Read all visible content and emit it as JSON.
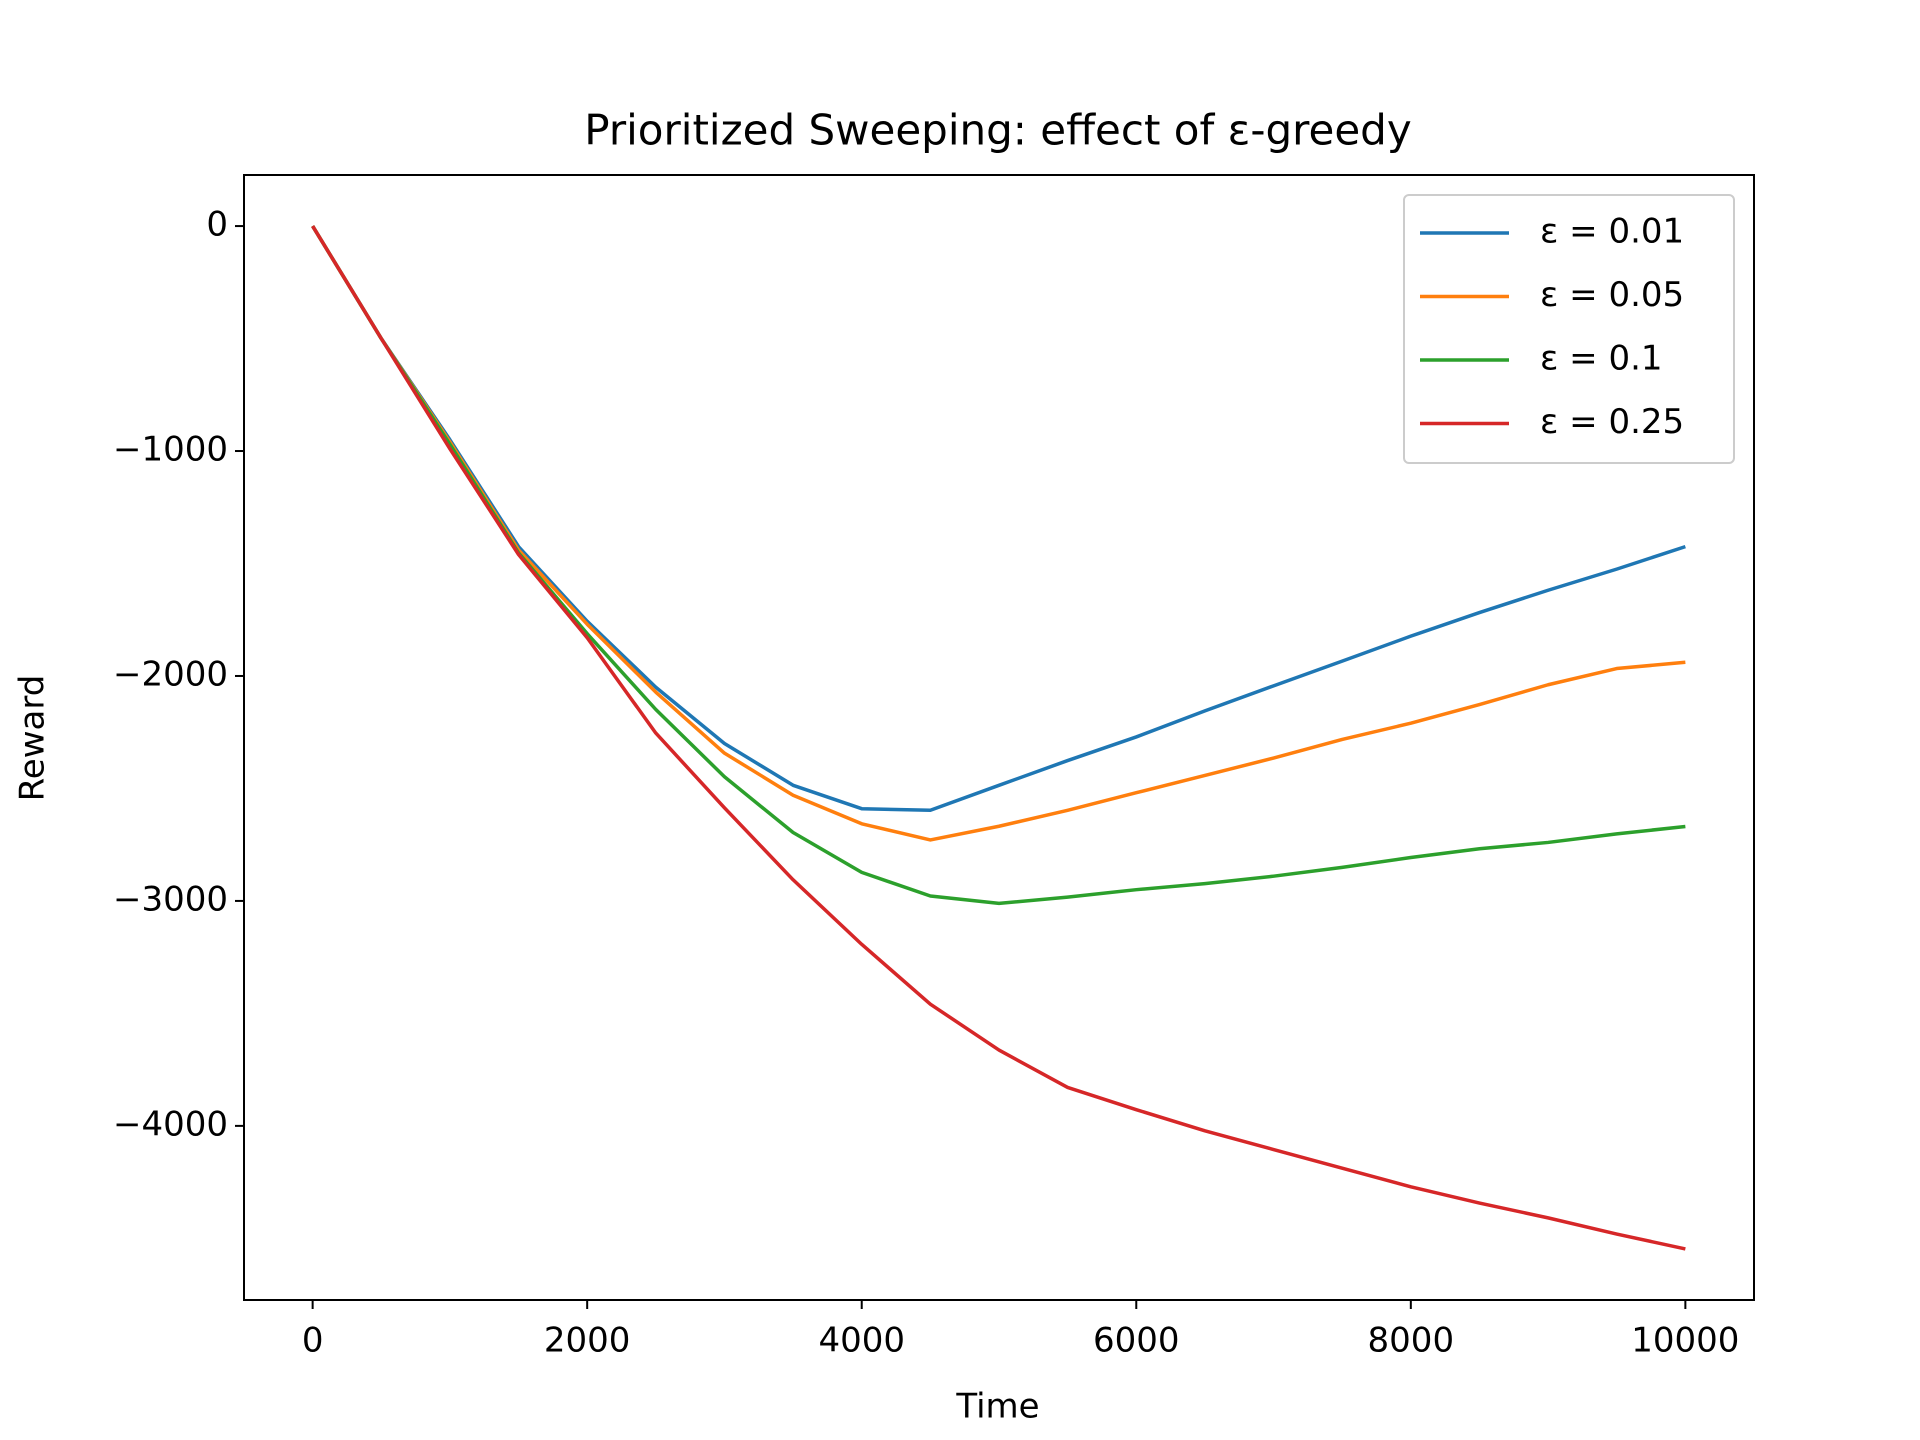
{
  "chart_data": {
    "type": "line",
    "title": "Prioritized Sweeping: effect of ε-greedy",
    "x_label": "Time",
    "y_label": "Reward",
    "x": [
      0,
      500,
      1000,
      1500,
      2000,
      2500,
      3000,
      3500,
      4000,
      4500,
      5000,
      5500,
      6000,
      6500,
      7000,
      7500,
      8000,
      8500,
      9000,
      9500,
      10000
    ],
    "series": [
      {
        "name": "ε = 0.01",
        "color": "#1f77b4",
        "values": [
          0,
          -500,
          -950,
          -1425,
          -1757,
          -2050,
          -2300,
          -2486,
          -2590,
          -2597,
          -2486,
          -2376,
          -2271,
          -2155,
          -2044,
          -1934,
          -1823,
          -1718,
          -1619,
          -1525,
          -1425
        ]
      },
      {
        "name": "ε = 0.05",
        "color": "#ff7f0e",
        "values": [
          0,
          -500,
          -960,
          -1440,
          -1770,
          -2072,
          -2343,
          -2530,
          -2657,
          -2729,
          -2668,
          -2597,
          -2519,
          -2442,
          -2365,
          -2282,
          -2210,
          -2127,
          -2039,
          -1967,
          -1939
        ]
      },
      {
        "name": "ε = 0.1",
        "color": "#2ca02c",
        "values": [
          0,
          -500,
          -970,
          -1453,
          -1812,
          -2149,
          -2448,
          -2696,
          -2873,
          -2978,
          -3011,
          -2983,
          -2950,
          -2923,
          -2890,
          -2851,
          -2807,
          -2768,
          -2740,
          -2702,
          -2669
        ]
      },
      {
        "name": "ε = 0.25",
        "color": "#d62728",
        "values": [
          0,
          -500,
          -990,
          -1460,
          -1830,
          -2254,
          -2586,
          -2906,
          -3193,
          -3459,
          -3663,
          -3829,
          -3928,
          -4022,
          -4105,
          -4188,
          -4271,
          -4343,
          -4409,
          -4481,
          -4547
        ]
      }
    ],
    "xlim": [
      -500,
      10500
    ],
    "xticks": [
      0,
      2000,
      4000,
      6000,
      8000,
      10000
    ],
    "ylim": [
      -4774,
      227
    ],
    "yticks": [
      {
        "value": -4000,
        "label": "−4000"
      },
      {
        "value": -3000,
        "label": "−3000"
      },
      {
        "value": -2000,
        "label": "−2000"
      },
      {
        "value": -1000,
        "label": "−1000"
      },
      0
    ],
    "legend": "upper right",
    "grid": false
  }
}
